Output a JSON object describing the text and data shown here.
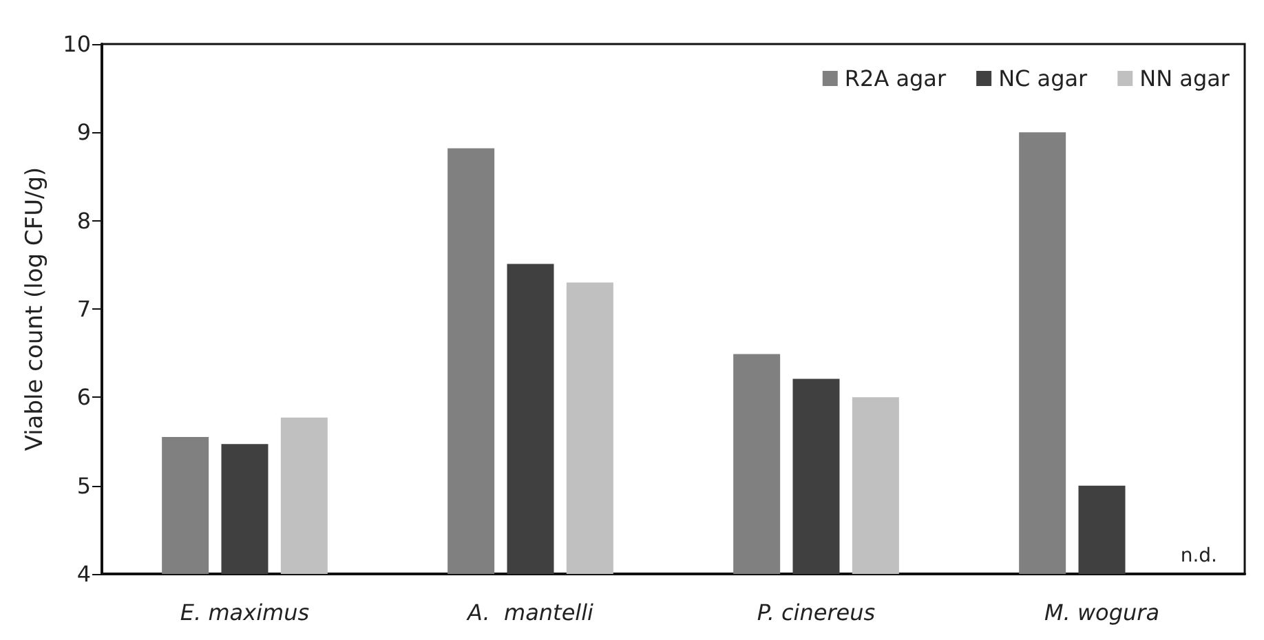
{
  "chart_data": {
    "type": "bar",
    "ylabel": "Viable count (log CFU/g)",
    "categories": [
      "E. maximus",
      "A.  mantelli",
      "P. cinereus",
      "M. wogura"
    ],
    "series": [
      {
        "name": "R2A agar",
        "color": "#808080",
        "values": [
          5.55,
          8.82,
          6.49,
          9.0
        ]
      },
      {
        "name": "NC agar",
        "color": "#404040",
        "values": [
          5.47,
          7.51,
          6.21,
          5.0
        ]
      },
      {
        "name": "NN agar",
        "color": "#c0c0c0",
        "values": [
          5.77,
          7.3,
          6.0,
          null
        ]
      }
    ],
    "ylim": [
      4,
      10
    ],
    "yticks": [
      4,
      5,
      6,
      7,
      8,
      9,
      10
    ],
    "grid": false,
    "legend": "top right",
    "annotations": [
      "n.d."
    ]
  }
}
